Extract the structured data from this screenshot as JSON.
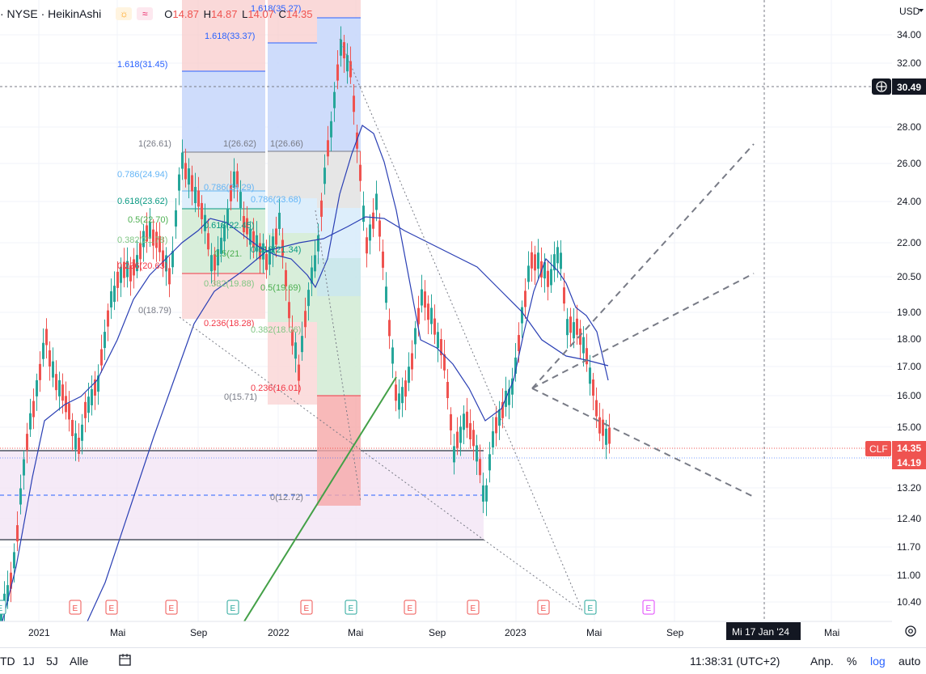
{
  "legend": {
    "symbol": "· NYSE · HeikinAshi",
    "sun_icon": "sun-icon",
    "wave_icon": "wave-icon",
    "o_label": "O",
    "o_value": "14.87",
    "h_label": "H",
    "h_value": "14.87",
    "l_label": "L",
    "l_value": "14.07",
    "c_label": "C",
    "c_value": "14.35"
  },
  "currency_label": "USD",
  "price_axis_ticks": [
    "34.00",
    "32.00",
    "28.00",
    "26.00",
    "24.00",
    "22.00",
    "20.50",
    "19.00",
    "18.00",
    "17.00",
    "16.00",
    "15.00",
    "13.20",
    "12.40",
    "11.70",
    "11.00",
    "10.40"
  ],
  "crosshair_price": "30.49",
  "symbol_tag": "CLF",
  "last_price": "14.35",
  "second_price": "14.19",
  "time_axis_ticks": [
    "2021",
    "Mai",
    "Sep",
    "2022",
    "Mai",
    "Sep",
    "2023",
    "Mai",
    "Sep",
    "Mai"
  ],
  "crosshair_date": "Mi 17 Jan '24",
  "fib_levels": {
    "group1": [
      "1.618(31.45)",
      "1(26.61)",
      "0.786(24.94)",
      "0.618(23.62)",
      "0.5(22.70)",
      "0.382(21.78)",
      "0.236(20.63)",
      "0(18.79)"
    ],
    "group2": [
      "1.618(33.37)",
      "1(26.62)",
      "0.786(24.29)",
      "0.618(22.45)",
      "0.5(21.",
      "0.382(19.88)",
      "0.236(18.28)"
    ],
    "group3": [
      "1.618(35.27)",
      "1(26.66)",
      "0.786(23.68)",
      "0.618(21.34)",
      "0.5(19.69)",
      "0.382(18.06)",
      "0.236(16.01)",
      "0(15.71)",
      "0(12.72)"
    ]
  },
  "event_markers": [
    "E",
    "E",
    "E",
    "E",
    "E",
    "E",
    "E",
    "E",
    "E",
    "E",
    "E",
    "E",
    "E"
  ],
  "bottom_bar": {
    "range_ytd": "TD",
    "range_1y": "1J",
    "range_5y": "5J",
    "range_all": "Alle",
    "goto_icon": "calendar-goto-icon",
    "clock": "11:38:31 (UTC+2)",
    "adj": "Anp.",
    "percent": "%",
    "log": "log",
    "auto": "auto"
  },
  "gear_icon": "settings-icon",
  "colors": {
    "up": "#26a69a",
    "down": "#ef5350",
    "ma_line": "#2a3fb4",
    "fib_blue": "#2962ff",
    "fib_red": "#f23645",
    "fib_green": "#4caf50",
    "trend_green": "#43a047",
    "log_blue": "#2962ff"
  }
}
